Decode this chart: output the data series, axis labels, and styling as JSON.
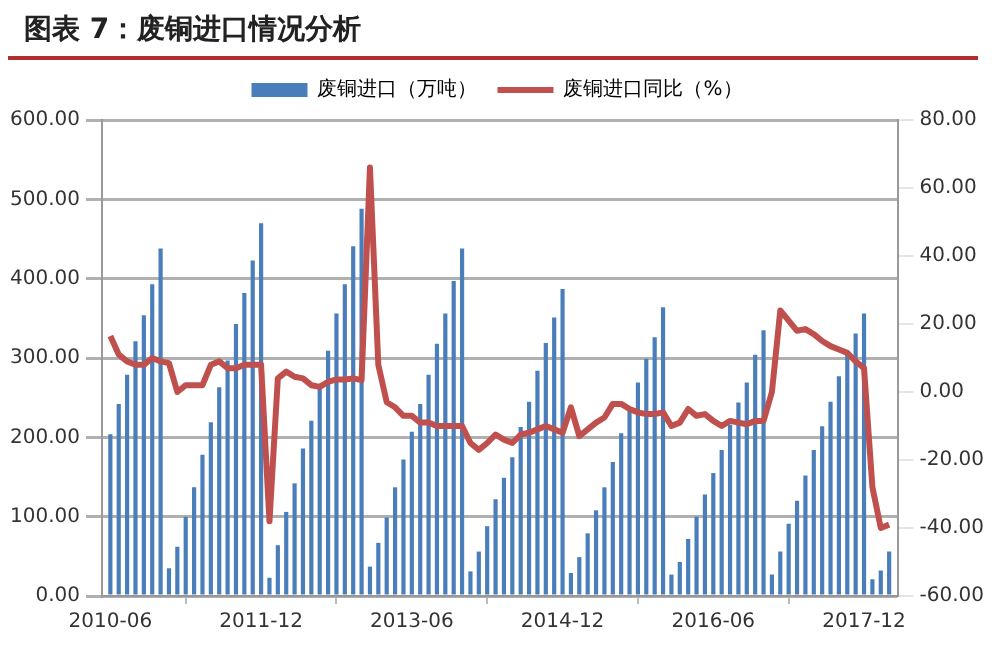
{
  "chart_data": {
    "type": "bar",
    "title": "图表 7：废铜进口情况分析",
    "x": [
      "2010-06",
      "2010-07",
      "2010-08",
      "2010-09",
      "2010-10",
      "2010-11",
      "2010-12",
      "2011-01",
      "2011-02",
      "2011-03",
      "2011-04",
      "2011-05",
      "2011-06",
      "2011-07",
      "2011-08",
      "2011-09",
      "2011-10",
      "2011-11",
      "2011-12",
      "2012-01",
      "2012-02",
      "2012-03",
      "2012-04",
      "2012-05",
      "2012-06",
      "2012-07",
      "2012-08",
      "2012-09",
      "2012-10",
      "2012-11",
      "2012-12",
      "2013-01",
      "2013-02",
      "2013-03",
      "2013-04",
      "2013-05",
      "2013-06",
      "2013-07",
      "2013-08",
      "2013-09",
      "2013-10",
      "2013-11",
      "2013-12",
      "2014-01",
      "2014-02",
      "2014-03",
      "2014-04",
      "2014-05",
      "2014-06",
      "2014-07",
      "2014-08",
      "2014-09",
      "2014-10",
      "2014-11",
      "2014-12",
      "2015-01",
      "2015-02",
      "2015-03",
      "2015-04",
      "2015-05",
      "2015-06",
      "2015-07",
      "2015-08",
      "2015-09",
      "2015-10",
      "2015-11",
      "2015-12",
      "2016-01",
      "2016-02",
      "2016-03",
      "2016-04",
      "2016-05",
      "2016-06",
      "2016-07",
      "2016-08",
      "2016-09",
      "2016-10",
      "2016-11",
      "2016-12",
      "2017-01",
      "2017-02",
      "2017-03",
      "2017-04",
      "2017-05",
      "2017-06",
      "2017-07",
      "2017-08",
      "2017-09",
      "2017-10",
      "2017-11",
      "2017-12",
      "2018-01",
      "2018-02",
      "2018-03"
    ],
    "series": [
      {
        "name": "废铜进口（万吨）",
        "color": "#4a7ebb",
        "values": [
          204,
          242,
          279,
          321,
          354,
          393,
          438,
          35,
          62,
          100,
          137,
          178,
          219,
          263,
          297,
          343,
          382,
          423,
          470,
          23,
          64,
          106,
          142,
          186,
          221,
          261,
          309,
          356,
          393,
          441,
          488,
          37,
          67,
          99,
          137,
          172,
          207,
          242,
          279,
          318,
          356,
          397,
          438,
          31,
          56,
          88,
          122,
          149,
          175,
          213,
          245,
          284,
          319,
          351,
          387,
          29,
          49,
          79,
          108,
          137,
          169,
          205,
          237,
          269,
          299,
          326,
          364,
          27,
          43,
          72,
          100,
          128,
          155,
          184,
          216,
          244,
          269,
          304,
          335,
          27,
          56,
          91,
          120,
          152,
          184,
          214,
          245,
          277,
          309,
          331,
          356,
          21,
          32,
          56
        ]
      },
      {
        "name": "废铜进口同比（%）",
        "type": "line",
        "axis": "y2",
        "color": "#c0504d",
        "values": [
          16.5,
          11,
          9,
          8,
          8,
          10,
          9,
          8.5,
          0,
          2,
          2,
          2,
          8,
          9,
          7,
          7,
          8,
          8,
          8,
          -38,
          4,
          6,
          4.5,
          4,
          2,
          1.5,
          3,
          3.7,
          3.7,
          4,
          3.5,
          66,
          8,
          -3,
          -4.5,
          -7,
          -7,
          -9,
          -9,
          -10,
          -10,
          -10,
          -10,
          -15,
          -17,
          -15,
          -12.5,
          -14,
          -15,
          -12.5,
          -12,
          -11,
          -10,
          -11,
          -12,
          -4.5,
          -13,
          -11,
          -9,
          -7.5,
          -3.5,
          -3.5,
          -5,
          -6,
          -6.5,
          -6.5,
          -6,
          -10,
          -9,
          -5,
          -7,
          -6.5,
          -8.5,
          -10,
          -8.5,
          -9,
          -9.5,
          -8.5,
          -8.5,
          0,
          24,
          21,
          18,
          18.5,
          17,
          15,
          13.5,
          12.5,
          11.5,
          9,
          7,
          -28,
          -40,
          -39
        ]
      }
    ],
    "xlim": [
      "2010-05",
      "2018-04"
    ],
    "xticks": [
      "2010-06",
      "2011-12",
      "2013-06",
      "2014-12",
      "2016-06",
      "2017-12"
    ],
    "ylim": [
      0,
      600
    ],
    "yticks": [
      {
        "value": 0,
        "label": "0.00"
      },
      {
        "value": 100,
        "label": "100.00"
      },
      {
        "value": 200,
        "label": "200.00"
      },
      {
        "value": 300,
        "label": "300.00"
      },
      {
        "value": 400,
        "label": "400.00"
      },
      {
        "value": 500,
        "label": "500.00"
      },
      {
        "value": 600,
        "label": "600.00"
      }
    ],
    "y2lim": [
      -60,
      80
    ],
    "y2ticks": [
      {
        "value": -60,
        "label": "-60.00"
      },
      {
        "value": -40,
        "label": "-40.00"
      },
      {
        "value": -20,
        "label": "-20.00"
      },
      {
        "value": 0,
        "label": "0.00"
      },
      {
        "value": 20,
        "label": "20.00"
      },
      {
        "value": 40,
        "label": "40.00"
      },
      {
        "value": 60,
        "label": "60.00"
      },
      {
        "value": 80,
        "label": "80.00"
      }
    ],
    "grid": "y",
    "legend": "top",
    "marker": "none",
    "line_style": "solid"
  }
}
